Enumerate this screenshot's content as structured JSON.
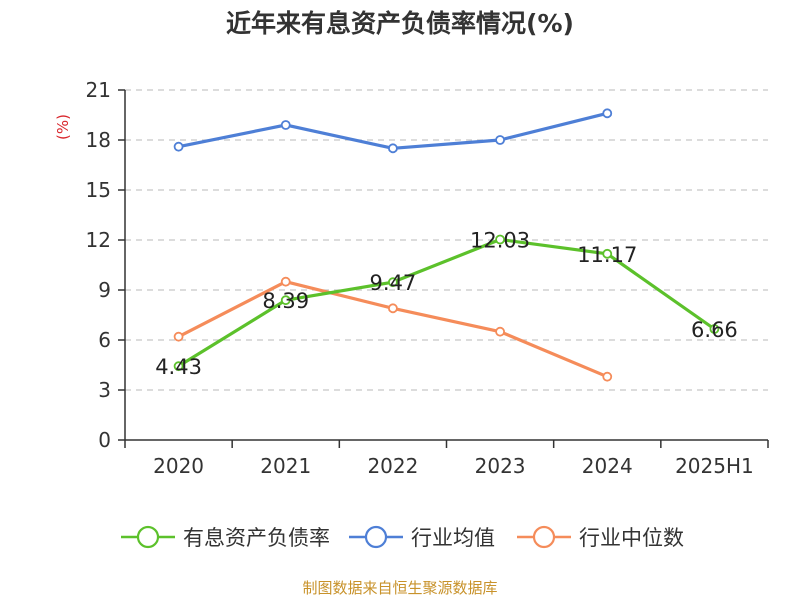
{
  "chart_data": {
    "type": "line",
    "title": "近年来有息资产负债率情况(%)",
    "ylabel": "(%)",
    "xlabel": "",
    "categories": [
      "2020",
      "2021",
      "2022",
      "2023",
      "2024",
      "2025H1"
    ],
    "ylim": [
      0,
      21
    ],
    "yticks": [
      0,
      3,
      6,
      9,
      12,
      15,
      18,
      21
    ],
    "grid": true,
    "legend_position": "bottom",
    "series": [
      {
        "name": "有息资产负债率",
        "color": "#5cc12b",
        "values": [
          4.43,
          8.39,
          9.47,
          12.03,
          11.17,
          6.66
        ],
        "labels": [
          "4.43",
          "8.39",
          "9.47",
          "12.03",
          "11.17",
          "6.66"
        ]
      },
      {
        "name": "行业均值",
        "color": "#4e7fd6",
        "values": [
          17.6,
          18.9,
          17.5,
          18.0,
          19.6,
          null
        ]
      },
      {
        "name": "行业中位数",
        "color": "#f58c5a",
        "values": [
          6.2,
          9.5,
          7.9,
          6.5,
          3.8,
          null
        ]
      }
    ]
  },
  "source": "制图数据来自恒生聚源数据库",
  "colors": {
    "title": "#333333",
    "axis": "#333333",
    "grid": "#c8c8c8",
    "ylabel": "#d9262c",
    "source": "#c8922a"
  }
}
